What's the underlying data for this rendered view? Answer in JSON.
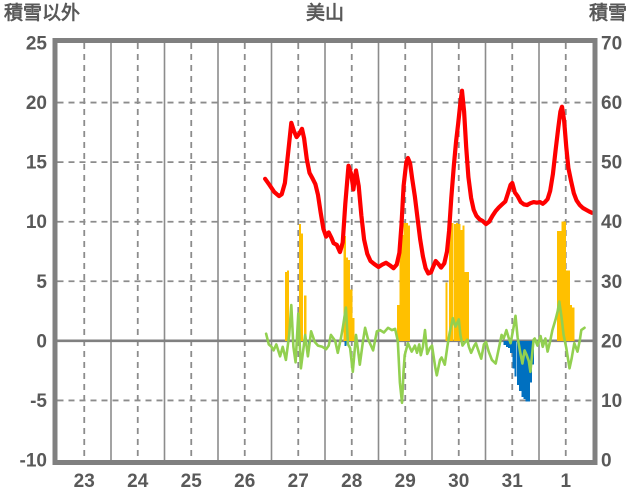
{
  "page": {
    "background": "#FFFFFF",
    "text_color": "#595959"
  },
  "chart_data": {
    "type": "line+bar",
    "title": "美山",
    "x_axis": {
      "labels": [
        "23",
        "24",
        "25",
        "26",
        "27",
        "28",
        "29",
        "30",
        "31",
        "1"
      ],
      "days_shown": 10,
      "grid": "solid at day boundaries, dashed at day centers"
    },
    "left_axis": {
      "label": "積雪以外",
      "min": -10,
      "max": 25,
      "ticks": [
        25,
        20,
        15,
        10,
        5,
        0,
        -5,
        -10
      ]
    },
    "right_axis": {
      "label": "積雪",
      "min": 0,
      "max": 70,
      "ticks": [
        70,
        60,
        50,
        40,
        30,
        20,
        10,
        0
      ]
    },
    "grid": {
      "frame_color": "#808080",
      "line_color": "#8C8C8C",
      "text_color": "#595959",
      "zero_line_color": "#808080"
    },
    "legend": "none",
    "series": [
      {
        "id": "red-line",
        "type": "line",
        "axis": "right",
        "color": "#FF0000",
        "width": 4.2,
        "points": [
          [
            3.88,
            47.2
          ],
          [
            3.96,
            46.2
          ],
          [
            4.05,
            45.0
          ],
          [
            4.14,
            44.3
          ],
          [
            4.19,
            44.6
          ],
          [
            4.25,
            46.5
          ],
          [
            4.31,
            51.5
          ],
          [
            4.37,
            56.6
          ],
          [
            4.42,
            55.2
          ],
          [
            4.47,
            54.2
          ],
          [
            4.52,
            54.8
          ],
          [
            4.57,
            55.6
          ],
          [
            4.61,
            54.0
          ],
          [
            4.66,
            50.5
          ],
          [
            4.71,
            48.2
          ],
          [
            4.77,
            47.2
          ],
          [
            4.82,
            46.3
          ],
          [
            4.87,
            44.5
          ],
          [
            4.92,
            41.5
          ],
          [
            4.97,
            38.8
          ],
          [
            5.02,
            37.5
          ],
          [
            5.07,
            38.2
          ],
          [
            5.12,
            37.3
          ],
          [
            5.16,
            36.4
          ],
          [
            5.22,
            36.1
          ],
          [
            5.28,
            34.9
          ],
          [
            5.33,
            36.5
          ],
          [
            5.38,
            43.0
          ],
          [
            5.44,
            49.4
          ],
          [
            5.49,
            48.0
          ],
          [
            5.53,
            45.4
          ],
          [
            5.58,
            48.6
          ],
          [
            5.63,
            46.0
          ],
          [
            5.68,
            41.0
          ],
          [
            5.73,
            37.0
          ],
          [
            5.79,
            34.6
          ],
          [
            5.85,
            33.4
          ],
          [
            5.92,
            32.9
          ],
          [
            6.0,
            32.4
          ],
          [
            6.07,
            32.8
          ],
          [
            6.14,
            33.1
          ],
          [
            6.21,
            32.7
          ],
          [
            6.28,
            32.2
          ],
          [
            6.34,
            32.8
          ],
          [
            6.39,
            34.8
          ],
          [
            6.43,
            39.5
          ],
          [
            6.47,
            46.0
          ],
          [
            6.52,
            50.0
          ],
          [
            6.55,
            50.7
          ],
          [
            6.59,
            49.8
          ],
          [
            6.63,
            47.2
          ],
          [
            6.68,
            44.2
          ],
          [
            6.73,
            40.5
          ],
          [
            6.78,
            37.0
          ],
          [
            6.83,
            34.2
          ],
          [
            6.88,
            32.2
          ],
          [
            6.93,
            31.3
          ],
          [
            6.98,
            31.5
          ],
          [
            7.03,
            32.6
          ],
          [
            7.07,
            33.4
          ],
          [
            7.12,
            32.9
          ],
          [
            7.17,
            32.3
          ],
          [
            7.23,
            33.0
          ],
          [
            7.28,
            35.0
          ],
          [
            7.32,
            38.5
          ],
          [
            7.36,
            44.0
          ],
          [
            7.41,
            49.5
          ],
          [
            7.45,
            53.5
          ],
          [
            7.49,
            56.5
          ],
          [
            7.53,
            60.0
          ],
          [
            7.56,
            62.0
          ],
          [
            7.6,
            58.5
          ],
          [
            7.64,
            52.5
          ],
          [
            7.68,
            47.5
          ],
          [
            7.73,
            44.0
          ],
          [
            7.78,
            42.0
          ],
          [
            7.83,
            41.0
          ],
          [
            7.89,
            40.4
          ],
          [
            7.95,
            40.1
          ],
          [
            8.01,
            39.6
          ],
          [
            8.07,
            40.0
          ],
          [
            8.13,
            41.0
          ],
          [
            8.19,
            41.8
          ],
          [
            8.25,
            42.4
          ],
          [
            8.31,
            42.9
          ],
          [
            8.37,
            43.4
          ],
          [
            8.42,
            44.8
          ],
          [
            8.47,
            46.2
          ],
          [
            8.5,
            46.5
          ],
          [
            8.55,
            44.9
          ],
          [
            8.6,
            44.3
          ],
          [
            8.66,
            43.3
          ],
          [
            8.72,
            42.9
          ],
          [
            8.78,
            42.8
          ],
          [
            8.84,
            43.1
          ],
          [
            8.9,
            43.3
          ],
          [
            8.96,
            43.2
          ],
          [
            9.02,
            43.3
          ],
          [
            9.07,
            43.0
          ],
          [
            9.11,
            43.3
          ],
          [
            9.16,
            43.8
          ],
          [
            9.21,
            45.2
          ],
          [
            9.26,
            48.0
          ],
          [
            9.31,
            52.0
          ],
          [
            9.36,
            55.8
          ],
          [
            9.4,
            58.5
          ],
          [
            9.43,
            59.3
          ],
          [
            9.47,
            57.0
          ],
          [
            9.51,
            52.5
          ],
          [
            9.55,
            49.0
          ],
          [
            9.6,
            46.8
          ],
          [
            9.65,
            44.8
          ],
          [
            9.7,
            43.6
          ],
          [
            9.76,
            42.8
          ],
          [
            9.82,
            42.3
          ],
          [
            9.88,
            42.0
          ],
          [
            9.94,
            41.7
          ],
          [
            9.99,
            41.5
          ]
        ]
      },
      {
        "id": "green-line",
        "type": "line",
        "axis": "left",
        "color": "#92D050",
        "width": 2.6,
        "points": [
          [
            3.9,
            0.6
          ],
          [
            3.95,
            -0.3
          ],
          [
            4.0,
            -0.5
          ],
          [
            4.04,
            -0.8
          ],
          [
            4.09,
            -0.3
          ],
          [
            4.16,
            -1.3
          ],
          [
            4.21,
            -0.5
          ],
          [
            4.27,
            -1.6
          ],
          [
            4.33,
            0.5
          ],
          [
            4.37,
            3.0
          ],
          [
            4.41,
            -0.5
          ],
          [
            4.45,
            -1.8
          ],
          [
            4.5,
            2.3
          ],
          [
            4.55,
            -2.3
          ],
          [
            4.63,
            0.5
          ],
          [
            4.68,
            -1.3
          ],
          [
            4.74,
            0.8
          ],
          [
            4.81,
            -0.1
          ],
          [
            4.87,
            -0.4
          ],
          [
            4.95,
            -0.5
          ],
          [
            5.02,
            -0.7
          ],
          [
            5.07,
            -0.4
          ],
          [
            5.11,
            0.5
          ],
          [
            5.19,
            0.0
          ],
          [
            5.24,
            -1.0
          ],
          [
            5.3,
            0.3
          ],
          [
            5.34,
            1.3
          ],
          [
            5.39,
            2.8
          ],
          [
            5.43,
            -0.3
          ],
          [
            5.47,
            -0.6
          ],
          [
            5.52,
            -2.6
          ],
          [
            5.58,
            0.5
          ],
          [
            5.61,
            -0.5
          ],
          [
            5.65,
            -2.0
          ],
          [
            5.71,
            0.0
          ],
          [
            5.75,
            1.1
          ],
          [
            5.8,
            0.2
          ],
          [
            5.84,
            -0.2
          ],
          [
            5.9,
            -0.8
          ],
          [
            5.97,
            0.8
          ],
          [
            6.03,
            0.9
          ],
          [
            6.1,
            0.7
          ],
          [
            6.18,
            1.1
          ],
          [
            6.25,
            0.9
          ],
          [
            6.31,
            1.0
          ],
          [
            6.36,
            0.0
          ],
          [
            6.4,
            -3.5
          ],
          [
            6.44,
            -5.2
          ],
          [
            6.47,
            -2.5
          ],
          [
            6.49,
            -1.2
          ],
          [
            6.55,
            -0.2
          ],
          [
            6.62,
            -0.9
          ],
          [
            6.68,
            -0.4
          ],
          [
            6.72,
            -1.0
          ],
          [
            6.76,
            -0.3
          ],
          [
            6.79,
            -1.2
          ],
          [
            6.83,
            -0.5
          ],
          [
            6.87,
            0.9
          ],
          [
            6.91,
            -1.1
          ],
          [
            6.96,
            -0.6
          ],
          [
            7.0,
            -0.4
          ],
          [
            7.06,
            -2.2
          ],
          [
            7.09,
            -2.9
          ],
          [
            7.15,
            -1.6
          ],
          [
            7.18,
            -1.4
          ],
          [
            7.24,
            -2.0
          ],
          [
            7.29,
            -0.4
          ],
          [
            7.33,
            0.7
          ],
          [
            7.39,
            1.9
          ],
          [
            7.44,
            1.2
          ],
          [
            7.5,
            1.8
          ],
          [
            7.53,
            0.5
          ],
          [
            7.57,
            -0.4
          ],
          [
            7.62,
            -0.1
          ],
          [
            7.66,
            0.1
          ],
          [
            7.69,
            -0.5
          ],
          [
            7.73,
            -1.0
          ],
          [
            7.79,
            -0.4
          ],
          [
            7.82,
            -0.2
          ],
          [
            7.88,
            -1.0
          ],
          [
            7.92,
            -1.5
          ],
          [
            7.97,
            -0.3
          ],
          [
            8.01,
            -0.1
          ],
          [
            8.06,
            -0.9
          ],
          [
            8.12,
            -1.6
          ],
          [
            8.19,
            -1.9
          ],
          [
            8.25,
            -0.6
          ],
          [
            8.3,
            0.5
          ],
          [
            8.34,
            0.2
          ],
          [
            8.39,
            0.9
          ],
          [
            8.43,
            0.3
          ],
          [
            8.47,
            -0.2
          ],
          [
            8.52,
            1.0
          ],
          [
            8.56,
            2.1
          ],
          [
            8.6,
            0.3
          ],
          [
            8.65,
            -1.0
          ],
          [
            8.69,
            -1.9
          ],
          [
            8.73,
            -0.8
          ],
          [
            8.77,
            -1.2
          ],
          [
            8.81,
            -1.7
          ],
          [
            8.84,
            -2.6
          ],
          [
            8.9,
            0.1
          ],
          [
            8.92,
            0.2
          ],
          [
            8.97,
            -0.4
          ],
          [
            9.03,
            0.4
          ],
          [
            9.07,
            -0.5
          ],
          [
            9.12,
            0.2
          ],
          [
            9.16,
            -0.9
          ],
          [
            9.21,
            0.0
          ],
          [
            9.25,
            0.9
          ],
          [
            9.31,
            1.8
          ],
          [
            9.35,
            2.5
          ],
          [
            9.38,
            3.3
          ],
          [
            9.42,
            2.0
          ],
          [
            9.46,
            0.5
          ],
          [
            9.51,
            -0.6
          ],
          [
            9.57,
            -2.3
          ],
          [
            9.61,
            -1.5
          ],
          [
            9.66,
            -0.2
          ],
          [
            9.72,
            -0.9
          ],
          [
            9.76,
            0.0
          ],
          [
            9.79,
            0.9
          ],
          [
            9.85,
            1.1
          ]
        ]
      },
      {
        "id": "amber-bars",
        "type": "bar",
        "axis": "left",
        "color": "#FFC000",
        "points": [
          [
            4.27,
            5.8
          ],
          [
            4.31,
            5.9
          ],
          [
            4.53,
            9.8
          ],
          [
            4.57,
            9.0
          ],
          [
            4.63,
            3.8
          ],
          [
            5.37,
            8.8
          ],
          [
            5.41,
            7.0
          ],
          [
            5.45,
            6.8
          ],
          [
            5.49,
            4.3
          ],
          [
            5.53,
            1.9
          ],
          [
            6.37,
            3.0
          ],
          [
            6.41,
            9.7
          ],
          [
            6.45,
            8.9
          ],
          [
            6.49,
            9.9
          ],
          [
            6.53,
            9.9
          ],
          [
            6.57,
            9.7
          ],
          [
            7.27,
            4.9
          ],
          [
            7.34,
            9.7
          ],
          [
            7.38,
            9.9
          ],
          [
            7.43,
            9.8
          ],
          [
            7.47,
            9.9
          ],
          [
            7.51,
            9.8
          ],
          [
            7.55,
            9.3
          ],
          [
            7.59,
            9.7
          ],
          [
            7.63,
            5.8
          ],
          [
            7.67,
            5.8
          ],
          [
            9.36,
            9.2
          ],
          [
            9.4,
            9.2
          ],
          [
            9.44,
            10.0
          ],
          [
            9.48,
            10.0
          ],
          [
            9.52,
            5.9
          ],
          [
            9.56,
            5.9
          ],
          [
            9.6,
            3.0
          ],
          [
            9.64,
            2.8
          ]
        ]
      },
      {
        "id": "blue-bars",
        "type": "bar",
        "axis": "left",
        "color": "#0070C0",
        "points": [
          [
            4.7,
            -0.5
          ],
          [
            5.38,
            -0.45
          ],
          [
            8.36,
            -0.35
          ],
          [
            8.4,
            -0.5
          ],
          [
            8.44,
            -0.6
          ],
          [
            8.48,
            -1.0
          ],
          [
            8.52,
            -2.3
          ],
          [
            8.56,
            -3.0
          ],
          [
            8.61,
            -3.7
          ],
          [
            8.65,
            -4.2
          ],
          [
            8.69,
            -4.7
          ],
          [
            8.73,
            -4.9
          ],
          [
            8.77,
            -5.1
          ],
          [
            8.81,
            -5.1
          ],
          [
            8.85,
            -3.5
          ],
          [
            8.89,
            -2.0
          ],
          [
            9.06,
            -0.4
          ]
        ]
      }
    ]
  }
}
